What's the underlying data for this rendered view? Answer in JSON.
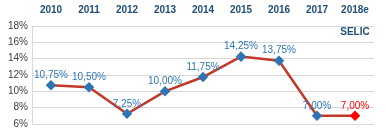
{
  "chart_data": {
    "type": "line",
    "categories": [
      "2010",
      "2011",
      "2012",
      "2013",
      "2014",
      "2015",
      "2016",
      "2017",
      "2018e"
    ],
    "annotation": "SELIC",
    "series": [
      {
        "name": "SELIC",
        "color": "#c0392b",
        "marker": "diamond",
        "values": [
          10.75,
          10.5,
          7.25,
          10.0,
          11.75,
          14.25,
          13.75,
          7.0,
          7.0
        ],
        "value_labels": [
          "10,75%",
          "10,50%",
          "7,25%",
          "10,00%",
          "11,75%",
          "14,25%",
          "13,75%",
          "7,00%",
          "7,00%"
        ],
        "colors": [
          "#2e75b6",
          "#2e75b6",
          "#2e75b6",
          "#2e75b6",
          "#2e75b6",
          "#2e75b6",
          "#2e75b6",
          "#2e75b6",
          "#ff0000"
        ]
      }
    ],
    "ylim": [
      6,
      18
    ],
    "yticks": [
      {
        "value": 6,
        "label": "6%"
      },
      {
        "value": 8,
        "label": "8%"
      },
      {
        "value": 10,
        "label": "10%"
      },
      {
        "value": 12,
        "label": "12%"
      },
      {
        "value": 14,
        "label": "14%"
      },
      {
        "value": 16,
        "label": "16%"
      },
      {
        "value": 18,
        "label": "18%"
      }
    ],
    "grid": true,
    "data_labels": true
  }
}
